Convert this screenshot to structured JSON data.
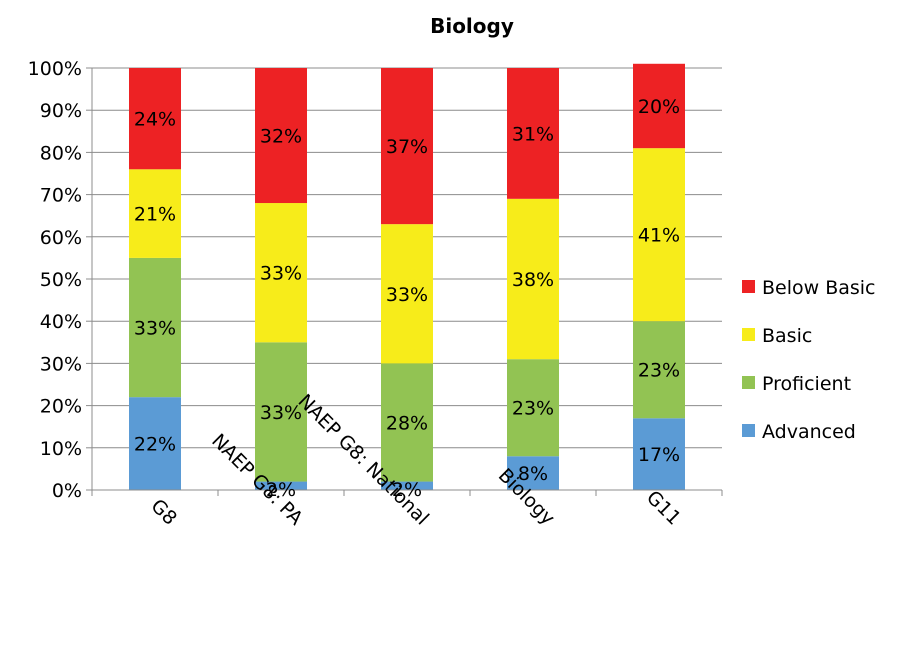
{
  "chart_data": {
    "type": "bar",
    "stacked": true,
    "title": "Biology",
    "xlabel": "",
    "ylabel": "",
    "ylim": [
      0,
      100
    ],
    "yticks": [
      "0%",
      "10%",
      "20%",
      "30%",
      "40%",
      "50%",
      "60%",
      "70%",
      "80%",
      "90%",
      "100%"
    ],
    "grid": true,
    "legend_position": "right",
    "categories": [
      "G8",
      "NAEP G8: PA",
      "NAEP G8: National",
      "Biology",
      "G11"
    ],
    "series": [
      {
        "name": "Advanced",
        "color": "#5b9bd5",
        "values": [
          22,
          2,
          2,
          8,
          17
        ],
        "labels": [
          "22%",
          "2%",
          "2%",
          "8%",
          "17%"
        ]
      },
      {
        "name": "Proficient",
        "color": "#92c353",
        "values": [
          33,
          33,
          28,
          23,
          23
        ],
        "labels": [
          "33%",
          "33%",
          "28%",
          "23%",
          "23%"
        ]
      },
      {
        "name": "Basic",
        "color": "#f7ec1a",
        "values": [
          21,
          33,
          33,
          38,
          41
        ],
        "labels": [
          "21%",
          "33%",
          "33%",
          "38%",
          "41%"
        ]
      },
      {
        "name": "Below Basic",
        "color": "#ed2224",
        "values": [
          24,
          32,
          37,
          31,
          20
        ],
        "labels": [
          "24%",
          "32%",
          "37%",
          "31%",
          "20%"
        ]
      }
    ],
    "legend_order": [
      "Below Basic",
      "Basic",
      "Proficient",
      "Advanced"
    ]
  }
}
